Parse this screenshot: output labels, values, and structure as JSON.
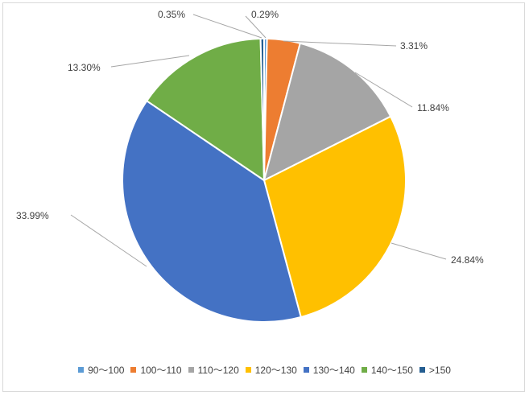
{
  "chart_data": {
    "type": "pie",
    "title": "",
    "legend_position": "bottom",
    "slices": [
      {
        "label": "90～100",
        "value": 0.29,
        "display": "0.29%",
        "color": "#5B9BD5"
      },
      {
        "label": "100～110",
        "value": 3.31,
        "display": "3.31%",
        "color": "#ED7D31"
      },
      {
        "label": "110～120",
        "value": 11.84,
        "display": "11.84%",
        "color": "#A5A5A5"
      },
      {
        "label": "120～130",
        "value": 24.84,
        "display": "24.84%",
        "color": "#FFC000"
      },
      {
        "label": "130～140",
        "value": 33.99,
        "display": "33.99%",
        "color": "#4472C4"
      },
      {
        "label": "140～150",
        "value": 13.3,
        "display": "13.30%",
        "color": "#70AD47"
      },
      {
        "label": ">150",
        "value": 0.35,
        "display": "0.35%",
        "color": "#255E91"
      }
    ]
  }
}
